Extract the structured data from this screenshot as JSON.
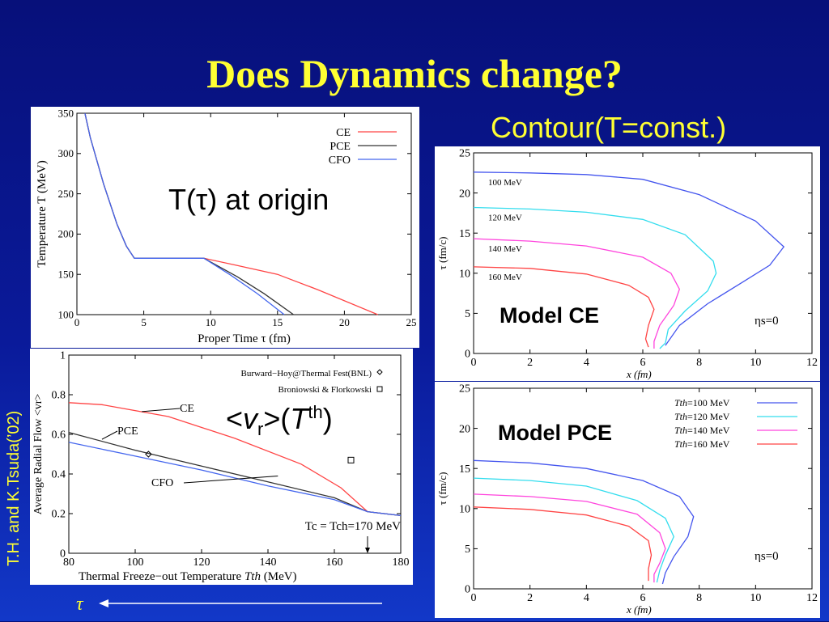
{
  "slide": {
    "title": "Does Dynamics change?",
    "contour_heading": "Contour(T=const.)",
    "credit": "T.H. and K.Tsuda(’02)",
    "tau_symbol": "τ",
    "colors": {
      "title": "#ffff33",
      "background": "#0a1a9a"
    }
  },
  "chart_data": [
    {
      "id": "temperature",
      "type": "line",
      "annotation": "T(τ) at origin",
      "xlabel": "Proper Time  τ  (fm)",
      "ylabel": "Temperature  T  (MeV)",
      "xlim": [
        0,
        25
      ],
      "ylim": [
        100,
        350
      ],
      "xticks": [
        "0",
        "5",
        "10",
        "15",
        "20",
        "25"
      ],
      "yticks": [
        "100",
        "150",
        "200",
        "250",
        "300",
        "350"
      ],
      "legend_position": "top-right",
      "series": [
        {
          "name": "CE",
          "color": "#ff4444",
          "points": [
            [
              0.6,
              350
            ],
            [
              1,
              320
            ],
            [
              2,
              262
            ],
            [
              3,
              212
            ],
            [
              3.7,
              185
            ],
            [
              4.3,
              170
            ],
            [
              9.5,
              170
            ],
            [
              12,
              161
            ],
            [
              15,
              150
            ],
            [
              18,
              131
            ],
            [
              22.5,
              100
            ]
          ]
        },
        {
          "name": "PCE",
          "color": "#333333",
          "points": [
            [
              0.6,
              350
            ],
            [
              1,
              320
            ],
            [
              2,
              262
            ],
            [
              3,
              212
            ],
            [
              3.7,
              185
            ],
            [
              4.3,
              170
            ],
            [
              9.5,
              170
            ],
            [
              12,
              147
            ],
            [
              14,
              126
            ],
            [
              16.2,
              100
            ]
          ]
        },
        {
          "name": "CFO",
          "color": "#4466ee",
          "points": [
            [
              0.6,
              350
            ],
            [
              1,
              320
            ],
            [
              2,
              262
            ],
            [
              3,
              212
            ],
            [
              3.7,
              185
            ],
            [
              4.3,
              170
            ],
            [
              9.5,
              170
            ],
            [
              11.5,
              149
            ],
            [
              13.5,
              126
            ],
            [
              15.5,
              100
            ]
          ]
        }
      ]
    },
    {
      "id": "radial-flow",
      "type": "line",
      "annotation_parts": [
        "<",
        "v",
        "r",
        ">(",
        "T",
        "th",
        ")"
      ],
      "xlabel": "Thermal Freeze−out Temperature",
      "xlabel_symbol": "Tth",
      "xlabel_unit": "(MeV)",
      "ylabel": "Average Radial Flow <vr>",
      "xlim": [
        80,
        180
      ],
      "ylim": [
        0,
        1
      ],
      "xticks": [
        "80",
        "100",
        "120",
        "140",
        "160",
        "180"
      ],
      "yticks": [
        "0",
        "0.2",
        "0.4",
        "0.6",
        "0.8",
        "1"
      ],
      "tc_label": "Tc = Tch=170 MeV",
      "legend": [
        "Burward−Hoy@Thermal Fest(BNL)",
        "Broniowski & Florkowski"
      ],
      "series": [
        {
          "name": "CE",
          "color": "#ff4444",
          "points": [
            [
              80,
              0.76
            ],
            [
              90,
              0.75
            ],
            [
              110,
              0.69
            ],
            [
              130,
              0.58
            ],
            [
              150,
              0.45
            ],
            [
              162,
              0.33
            ],
            [
              170,
              0.21
            ],
            [
              180,
              0.19
            ]
          ]
        },
        {
          "name": "PCE",
          "color": "#333333",
          "points": [
            [
              80,
              0.61
            ],
            [
              100,
              0.52
            ],
            [
              120,
              0.44
            ],
            [
              140,
              0.36
            ],
            [
              160,
              0.28
            ],
            [
              170,
              0.21
            ],
            [
              180,
              0.19
            ]
          ]
        },
        {
          "name": "CFO",
          "color": "#4466ee",
          "points": [
            [
              80,
              0.56
            ],
            [
              100,
              0.49
            ],
            [
              120,
              0.42
            ],
            [
              140,
              0.34
            ],
            [
              160,
              0.27
            ],
            [
              170,
              0.21
            ],
            [
              180,
              0.19
            ]
          ]
        }
      ],
      "markers": [
        {
          "label": "Burward−Hoy@Thermal Fest(BNL)",
          "shape": "diamond",
          "x": 104,
          "y": 0.5
        },
        {
          "label": "Broniowski & Florkowski",
          "shape": "square",
          "x": 165,
          "y": 0.47
        }
      ]
    },
    {
      "id": "contour-ce",
      "type": "line",
      "model": "Model CE",
      "eta": "ηs=0",
      "xlabel": "x (fm)",
      "ylabel": "τ (fm/c)",
      "xlim": [
        0,
        12
      ],
      "ylim": [
        0,
        25
      ],
      "xticks": [
        "0",
        "2",
        "4",
        "6",
        "8",
        "10",
        "12"
      ],
      "yticks": [
        "0",
        "5",
        "10",
        "15",
        "20",
        "25"
      ],
      "series": [
        {
          "name": "100 MeV",
          "color": "#4455ee",
          "points": [
            [
              0,
              22.6
            ],
            [
              2,
              22.5
            ],
            [
              4,
              22.3
            ],
            [
              6,
              21.7
            ],
            [
              8,
              19.8
            ],
            [
              10,
              16.5
            ],
            [
              11,
              13.3
            ],
            [
              10.5,
              11
            ],
            [
              9.5,
              8.8
            ],
            [
              8.3,
              6.2
            ],
            [
              7.3,
              3.5
            ],
            [
              6.8,
              1
            ]
          ]
        },
        {
          "name": "120 MeV",
          "color": "#33ddee",
          "points": [
            [
              0,
              18.2
            ],
            [
              2,
              18
            ],
            [
              4,
              17.6
            ],
            [
              6,
              16.7
            ],
            [
              7.5,
              14.8
            ],
            [
              8.5,
              11.5
            ],
            [
              8.6,
              10
            ],
            [
              8.3,
              7.8
            ],
            [
              7.5,
              5.3
            ],
            [
              6.9,
              3
            ],
            [
              6.8,
              1.3
            ],
            [
              6.6,
              0.6
            ]
          ]
        },
        {
          "name": "140 MeV",
          "color": "#ff44dd",
          "points": [
            [
              0,
              14.3
            ],
            [
              2,
              14
            ],
            [
              4,
              13.4
            ],
            [
              6,
              12
            ],
            [
              7,
              10
            ],
            [
              7.3,
              8
            ],
            [
              7.1,
              6
            ],
            [
              6.6,
              3.5
            ],
            [
              6.4,
              1.5
            ],
            [
              6.4,
              0.6
            ]
          ]
        },
        {
          "name": "160 MeV",
          "color": "#ff4444",
          "points": [
            [
              0,
              10.8
            ],
            [
              2,
              10.6
            ],
            [
              4,
              9.9
            ],
            [
              5.5,
              8.5
            ],
            [
              6.2,
              7
            ],
            [
              6.4,
              5.5
            ],
            [
              6.2,
              3.5
            ],
            [
              6.1,
              1.8
            ],
            [
              6.2,
              0.8
            ]
          ]
        }
      ]
    },
    {
      "id": "contour-pce",
      "type": "line",
      "model": "Model PCE",
      "eta": "ηs=0",
      "xlabel": "x (fm)",
      "ylabel": "τ (fm/c)",
      "xlim": [
        0,
        12
      ],
      "ylim": [
        0,
        25
      ],
      "xticks": [
        "0",
        "2",
        "4",
        "6",
        "8",
        "10",
        "12"
      ],
      "yticks": [
        "0",
        "5",
        "10",
        "15",
        "20",
        "25"
      ],
      "legend_symbol": "Tth",
      "series": [
        {
          "name": "=100 MeV",
          "color": "#4455ee",
          "points": [
            [
              0,
              16
            ],
            [
              2,
              15.7
            ],
            [
              4,
              15
            ],
            [
              6,
              13.5
            ],
            [
              7.3,
              11.5
            ],
            [
              7.8,
              9
            ],
            [
              7.6,
              6.5
            ],
            [
              7.1,
              4
            ],
            [
              6.8,
              2
            ],
            [
              6.7,
              0.6
            ]
          ]
        },
        {
          "name": "=120 MeV",
          "color": "#33ddee",
          "points": [
            [
              0,
              13.8
            ],
            [
              2,
              13.5
            ],
            [
              4,
              12.8
            ],
            [
              5.8,
              11
            ],
            [
              6.8,
              8.8
            ],
            [
              7.1,
              6.5
            ],
            [
              6.8,
              4.2
            ],
            [
              6.6,
              2.3
            ],
            [
              6.5,
              0.8
            ]
          ]
        },
        {
          "name": "=140 MeV",
          "color": "#ff44dd",
          "points": [
            [
              0,
              11.8
            ],
            [
              2,
              11.5
            ],
            [
              4,
              10.9
            ],
            [
              5.8,
              9.3
            ],
            [
              6.6,
              7
            ],
            [
              6.8,
              5
            ],
            [
              6.6,
              3.2
            ],
            [
              6.4,
              1.8
            ],
            [
              6.4,
              0.8
            ]
          ]
        },
        {
          "name": "=160 MeV",
          "color": "#ff4444",
          "points": [
            [
              0,
              10.2
            ],
            [
              2,
              9.9
            ],
            [
              4,
              9.2
            ],
            [
              5.5,
              7.8
            ],
            [
              6.2,
              6
            ],
            [
              6.3,
              4.2
            ],
            [
              6.2,
              2.5
            ],
            [
              6.2,
              1
            ]
          ]
        }
      ]
    }
  ]
}
